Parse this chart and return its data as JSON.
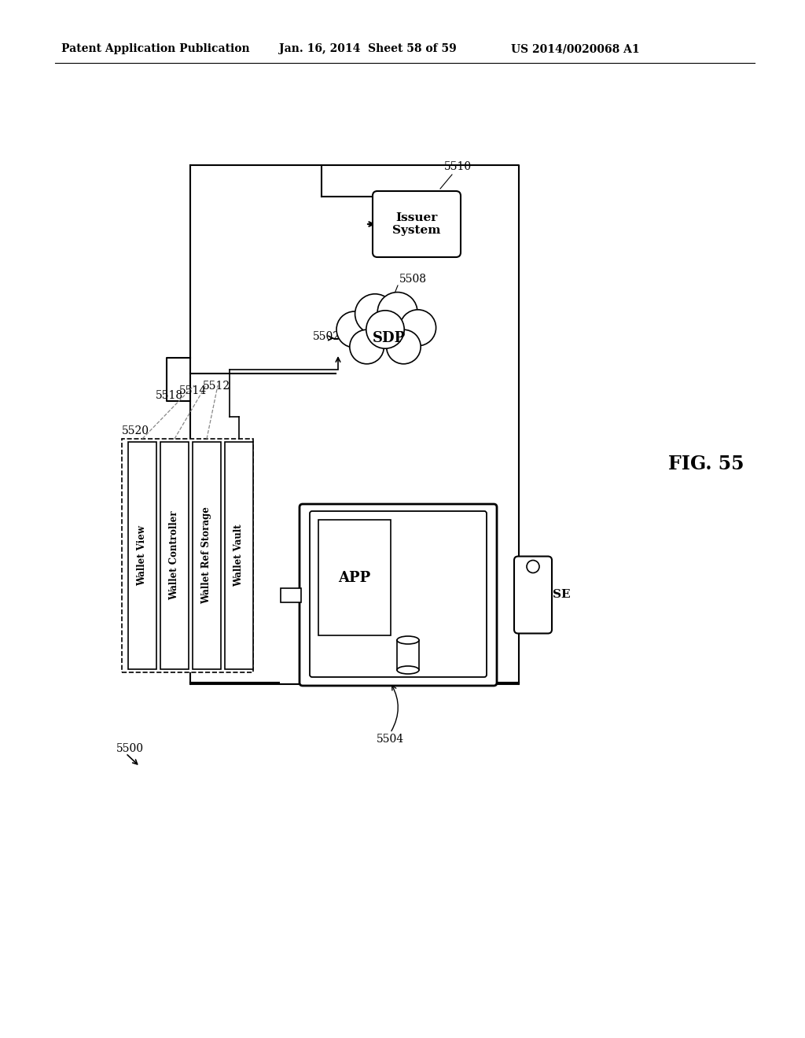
{
  "bg_color": "#ffffff",
  "header_left": "Patent Application Publication",
  "header_mid": "Jan. 16, 2014  Sheet 58 of 59",
  "header_right": "US 2014/0020068 A1",
  "fig_label": "FIG. 55",
  "line_color": "#000000",
  "labels": {
    "5500": "5500",
    "5502": "5502",
    "5504": "5504",
    "5508": "5508",
    "5510": "5510",
    "5512": "5512",
    "5514": "5514",
    "5518": "5518",
    "5520": "5520",
    "wallet_view": "Wallet View",
    "wallet_controller": "Wallet Controller",
    "wallet_ref_storage": "Wallet Ref Storage",
    "wallet_vault": "Wallet Vault",
    "sdp": "SDP",
    "issuer_system": "Issuer\nSystem",
    "app": "APP",
    "se": "SE"
  }
}
